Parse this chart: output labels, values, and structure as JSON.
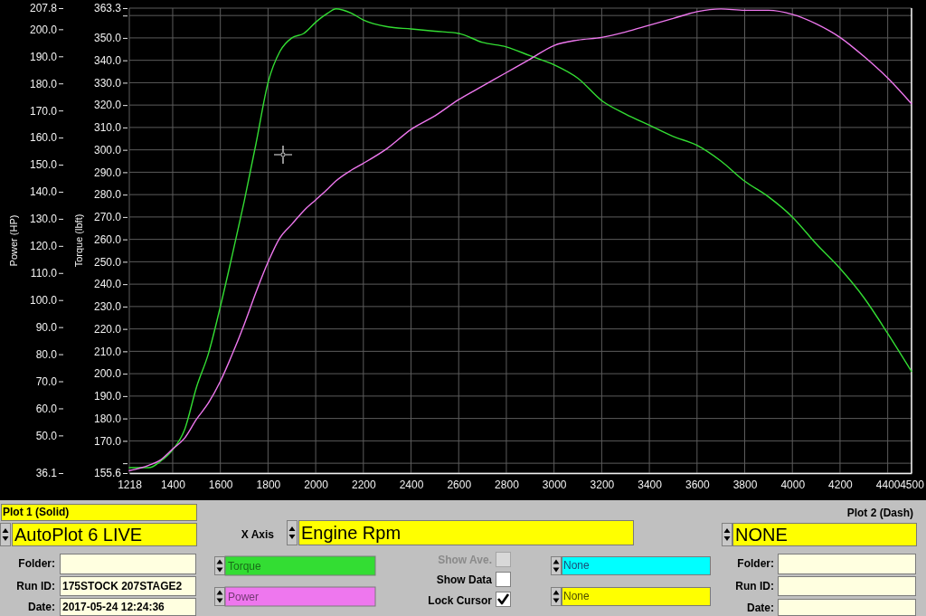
{
  "chart_data": {
    "type": "line",
    "xlabel": "Engine Rpm",
    "ylabel": "Power (HP)",
    "y2label": "Torque (lbft)",
    "x": [
      1218,
      1300,
      1350,
      1400,
      1450,
      1500,
      1550,
      1600,
      1650,
      1700,
      1750,
      1800,
      1850,
      1900,
      1950,
      2000,
      2050,
      2085,
      2150,
      2200,
      2300,
      2400,
      2500,
      2600,
      2700,
      2800,
      2900,
      3000,
      3100,
      3200,
      3300,
      3400,
      3500,
      3600,
      3700,
      3800,
      3900,
      4000,
      4100,
      4200,
      4300,
      4400,
      4500
    ],
    "series": [
      {
        "name": "Torque",
        "color": "#33dd33",
        "axis": "y2",
        "values": [
          158,
          158,
          161,
          166,
          175,
          194,
          209,
          230,
          253,
          277,
          303,
          330,
          344,
          350,
          352,
          357,
          361,
          363,
          361,
          358,
          355,
          354,
          353,
          352,
          348,
          346,
          342,
          338,
          332,
          322,
          316,
          311,
          306,
          302,
          295,
          286,
          279,
          270,
          258,
          247,
          234,
          218,
          201
        ]
      },
      {
        "name": "Power",
        "color": "#ee77ee",
        "axis": "y",
        "values": [
          37,
          39,
          41,
          45,
          49,
          56,
          62,
          70,
          80,
          91,
          103,
          114,
          123,
          128,
          133,
          137,
          141,
          144,
          148,
          150.5,
          156,
          163,
          168,
          174,
          179,
          184,
          189,
          194,
          196,
          197,
          199,
          201.5,
          204,
          206.5,
          207.5,
          207,
          207,
          205.5,
          202,
          197,
          190,
          182,
          172.5
        ]
      }
    ],
    "xlim": [
      1218,
      4500
    ],
    "xticks": [
      1218,
      1400,
      1600,
      1800,
      2000,
      2200,
      2400,
      2600,
      2800,
      3000,
      3200,
      3400,
      3600,
      3800,
      4000,
      4200,
      4400,
      4500
    ],
    "ylim": [
      36.1,
      207.8
    ],
    "yticks": [
      36.1,
      {
        "value": 50,
        "label": "50.0"
      },
      {
        "value": 60,
        "label": "60.0"
      },
      {
        "value": 70,
        "label": "70.0"
      },
      {
        "value": 80,
        "label": "80.0"
      },
      {
        "value": 90,
        "label": "90.0"
      },
      {
        "value": 100,
        "label": "100.0"
      },
      {
        "value": 110,
        "label": "110.0"
      },
      {
        "value": 120,
        "label": "120.0"
      },
      {
        "value": 130,
        "label": "130.0"
      },
      {
        "value": 140,
        "label": "140.0"
      },
      {
        "value": 150,
        "label": "150.0"
      },
      {
        "value": 160,
        "label": "160.0"
      },
      {
        "value": 170,
        "label": "170.0"
      },
      {
        "value": 180,
        "label": "180.0"
      },
      {
        "value": 190,
        "label": "190.0"
      },
      {
        "value": 200,
        "label": "200.0"
      },
      207.8
    ],
    "y2lim": [
      155.6,
      363.3
    ],
    "y2ticks": [
      155.6,
      {
        "value": 160,
        "label": null
      },
      {
        "value": 170,
        "label": "170.0"
      },
      {
        "value": 180,
        "label": "180.0"
      },
      {
        "value": 190,
        "label": "190.0"
      },
      {
        "value": 200,
        "label": "200.0"
      },
      {
        "value": 210,
        "label": "210.0"
      },
      {
        "value": 220,
        "label": "220.0"
      },
      {
        "value": 230,
        "label": "230.0"
      },
      {
        "value": 240,
        "label": "240.0"
      },
      {
        "value": 250,
        "label": "250.0"
      },
      {
        "value": 260,
        "label": "260.0"
      },
      {
        "value": 270,
        "label": "270.0"
      },
      {
        "value": 280,
        "label": "280.0"
      },
      {
        "value": 290,
        "label": "290.0"
      },
      {
        "value": 300,
        "label": "300.0"
      },
      {
        "value": 310,
        "label": "310.0"
      },
      {
        "value": 320,
        "label": "320.0"
      },
      {
        "value": 330,
        "label": "330.0"
      },
      {
        "value": 340,
        "label": "340.0"
      },
      {
        "value": 350,
        "label": "350.0"
      },
      {
        "value": 360,
        "label": null
      },
      363.3
    ],
    "grid": true,
    "legend": "bottom",
    "annotations": [
      "Plot 1 (Solid)",
      "AutoPlot 6 LIVE",
      "X Axis",
      "Plot 2 (Dash)",
      "NONE",
      "Folder:",
      "Run ID:",
      "175STOCK 207STAGE2",
      "Date:",
      "2017-05-24 12:24:36",
      "Show Ave.",
      "Show Data",
      "Lock Cursor",
      "None",
      "None",
      "Folder:",
      "Run ID:",
      "Date:"
    ]
  }
}
